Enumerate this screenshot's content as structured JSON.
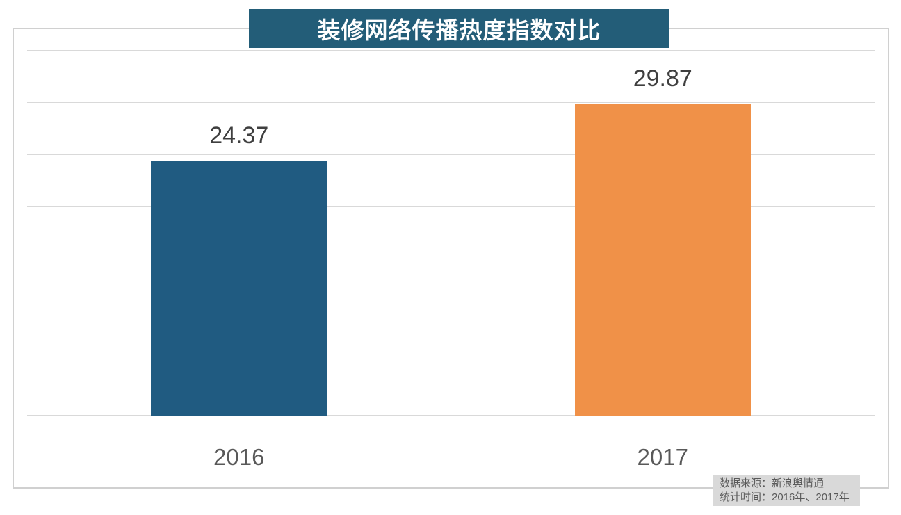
{
  "chart_data": {
    "type": "bar",
    "title": "装修网络传播热度指数对比",
    "categories": [
      "2016",
      "2017"
    ],
    "values": [
      24.37,
      29.87
    ],
    "value_labels": [
      "24.37",
      "29.87"
    ],
    "bar_colors": [
      "#205b81",
      "#f09148"
    ],
    "xlabel": "",
    "ylabel": "",
    "ylim": [
      0,
      35
    ],
    "ytick_step": 5,
    "yticks_labeled": false,
    "grid": true,
    "legend_position": "none"
  },
  "title_banner": {
    "bg_color": "#235d78",
    "text_color": "#ffffff"
  },
  "source_note": {
    "line1": "数据来源：新浪舆情通",
    "line2": "统计时间：2016年、2017年",
    "bg_color": "#d9d9d9",
    "text_color": "#595959"
  },
  "styles": {
    "background": "#ffffff",
    "border_color": "#d0d0d0",
    "grid_color": "#d9d9d9",
    "value_label_color": "#3f3f3f",
    "axis_label_color": "#595959"
  }
}
